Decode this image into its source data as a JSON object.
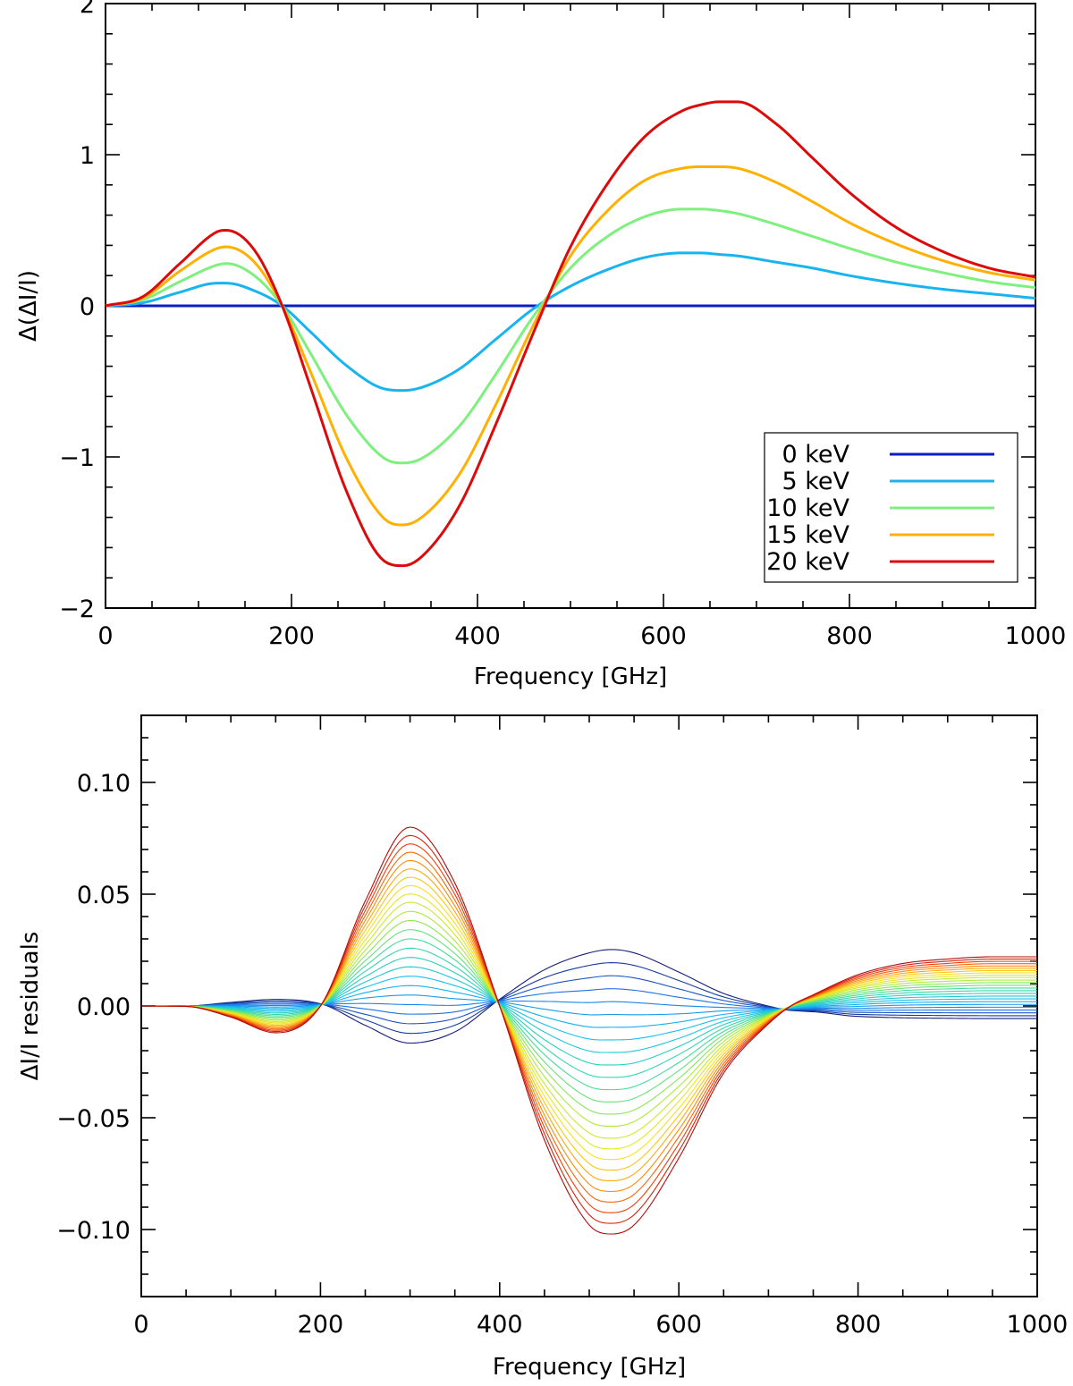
{
  "chart_data": [
    {
      "id": "top",
      "type": "line",
      "xlabel": "Frequency [GHz]",
      "ylabel": "Δ(ΔI/I)",
      "xlim": [
        0,
        1000
      ],
      "ylim": [
        -2,
        2
      ],
      "xticks": [
        0,
        200,
        400,
        600,
        800,
        1000
      ],
      "xtick_labels": [
        "0",
        "200",
        "400",
        "600",
        "800",
        "1000"
      ],
      "yticks": [
        -2,
        -1,
        0,
        1,
        2
      ],
      "ytick_labels": [
        "−2",
        "−1",
        "0",
        "1",
        "2"
      ],
      "legend_position": "bottom-right",
      "x": [
        0,
        40,
        80,
        120,
        130,
        160,
        190,
        220,
        260,
        300,
        320,
        340,
        380,
        420,
        460,
        500,
        540,
        580,
        620,
        640,
        660,
        680,
        720,
        760,
        800,
        850,
        900,
        950,
        1000
      ],
      "series": [
        {
          "name": "0 keV",
          "label": "0 keV",
          "color": "#0a1ec8",
          "values": [
            0,
            0,
            0,
            0,
            0,
            0,
            0,
            0,
            0,
            0,
            0,
            0,
            0,
            0,
            0,
            0,
            0,
            0,
            0,
            0,
            0,
            0,
            0,
            0,
            0,
            0,
            0,
            0,
            0
          ]
        },
        {
          "name": "5 keV",
          "label": "5 keV",
          "color": "#18b4f0",
          "values": [
            0,
            0.02,
            0.09,
            0.15,
            0.15,
            0.1,
            0,
            -0.17,
            -0.4,
            -0.55,
            -0.56,
            -0.54,
            -0.42,
            -0.22,
            -0.02,
            0.13,
            0.24,
            0.32,
            0.35,
            0.35,
            0.34,
            0.33,
            0.29,
            0.25,
            0.2,
            0.15,
            0.11,
            0.08,
            0.05
          ]
        },
        {
          "name": "10 keV",
          "label": "10 keV",
          "color": "#7df07d",
          "values": [
            0,
            0.04,
            0.16,
            0.27,
            0.28,
            0.2,
            0,
            -0.31,
            -0.73,
            -1.01,
            -1.04,
            -1.01,
            -0.8,
            -0.45,
            -0.07,
            0.25,
            0.46,
            0.59,
            0.64,
            0.64,
            0.63,
            0.61,
            0.54,
            0.46,
            0.38,
            0.29,
            0.22,
            0.16,
            0.12
          ]
        },
        {
          "name": "15 keV",
          "label": "15 keV",
          "color": "#ffb000",
          "values": [
            0,
            0.05,
            0.23,
            0.38,
            0.39,
            0.29,
            0,
            -0.43,
            -1.02,
            -1.41,
            -1.45,
            -1.4,
            -1.12,
            -0.65,
            -0.13,
            0.33,
            0.63,
            0.83,
            0.91,
            0.92,
            0.92,
            0.91,
            0.82,
            0.69,
            0.55,
            0.41,
            0.3,
            0.22,
            0.17
          ]
        },
        {
          "name": "20 keV",
          "label": "20 keV",
          "color": "#dc0a0a",
          "values": [
            0,
            0.06,
            0.28,
            0.49,
            0.5,
            0.37,
            0,
            -0.53,
            -1.24,
            -1.69,
            -1.72,
            -1.66,
            -1.33,
            -0.78,
            -0.18,
            0.39,
            0.81,
            1.12,
            1.29,
            1.33,
            1.35,
            1.35,
            1.21,
            0.98,
            0.75,
            0.52,
            0.36,
            0.25,
            0.19
          ]
        }
      ]
    },
    {
      "id": "bottom",
      "type": "line",
      "xlabel": "Frequency [GHz]",
      "ylabel": "ΔI/I residuals",
      "xlim": [
        0,
        1000
      ],
      "ylim": [
        -0.13,
        0.13
      ],
      "xticks": [
        0,
        200,
        400,
        600,
        800,
        1000
      ],
      "xtick_labels": [
        "0",
        "200",
        "400",
        "600",
        "800",
        "1000"
      ],
      "yticks": [
        -0.1,
        -0.05,
        0.0,
        0.05,
        0.1
      ],
      "ytick_labels": [
        "−0.10",
        "−0.05",
        "0.00",
        "0.05",
        "0.10"
      ],
      "family": {
        "count": 25,
        "colormap": "rainbow (blue → cyan → green → yellow → red)",
        "amplitude_min": -0.12,
        "amplitude_max": 1.0,
        "x": [
          0,
          50,
          100,
          150,
          200,
          250,
          300,
          350,
          400,
          450,
          500,
          525,
          550,
          600,
          650,
          700,
          725,
          750,
          800,
          850,
          900,
          950,
          1000
        ],
        "reference_curve_red": [
          0,
          -0.0002,
          -0.005,
          -0.012,
          0,
          0.047,
          0.08,
          0.055,
          0,
          -0.06,
          -0.098,
          -0.102,
          -0.098,
          -0.068,
          -0.03,
          -0.008,
          0,
          0.005,
          0.014,
          0.019,
          0.021,
          0.022,
          0.022
        ],
        "reference_curve_blue_offset": [
          0,
          0,
          0.001,
          0.0015,
          0.001,
          -0.003,
          -0.007,
          -0.005,
          0.003,
          0.009,
          0.012,
          0.013,
          0.012,
          0.007,
          0.002,
          -0.001,
          -0.002,
          -0.002,
          -0.003,
          -0.003,
          -0.003,
          -0.003,
          -0.003
        ]
      }
    }
  ]
}
